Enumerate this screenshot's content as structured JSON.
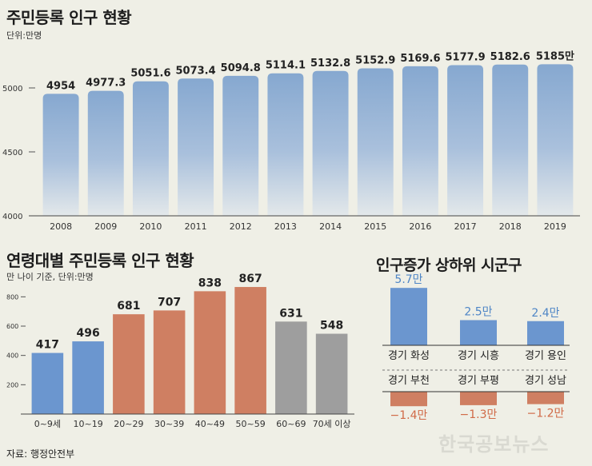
{
  "source": "자료: 행정안전부",
  "watermark": "한국공보뉴스",
  "chart_data": [
    {
      "type": "bar",
      "title": "주민등록 인구 현황",
      "subtitle": "단위:만명",
      "categories": [
        "2008",
        "2009",
        "2010",
        "2011",
        "2012",
        "2013",
        "2014",
        "2015",
        "2016",
        "2017",
        "2018",
        "2019"
      ],
      "values": [
        4954,
        4977.3,
        5051.6,
        5073.4,
        5094.8,
        5114.1,
        5132.8,
        5152.9,
        5169.6,
        5177.9,
        5182.6,
        5185
      ],
      "value_labels": [
        "4954",
        "4977.3",
        "5051.6",
        "5073.4",
        "5094.8",
        "5114.1",
        "5132.8",
        "5152.9",
        "5169.6",
        "5177.9",
        "5182.6",
        "5185만"
      ],
      "yticks": [
        4000,
        4500,
        5000
      ],
      "ytick_labels": [
        "4000",
        "4500",
        "5000"
      ],
      "ylim": [
        4000,
        5300
      ],
      "color": "#86a8d0"
    },
    {
      "type": "bar",
      "title": "연령대별 주민등록 인구 현황",
      "subtitle": "만 나이 기준, 단위:만명",
      "categories": [
        "0~9세",
        "10~19",
        "20~29",
        "30~39",
        "40~49",
        "50~59",
        "60~69",
        "70세 이상"
      ],
      "values": [
        417,
        496,
        681,
        707,
        838,
        867,
        631,
        548
      ],
      "value_labels": [
        "417",
        "496",
        "681",
        "707",
        "838",
        "867",
        "631",
        "548"
      ],
      "colors": [
        "#6b96cf",
        "#6b96cf",
        "#cf7f62",
        "#cf7f62",
        "#cf7f62",
        "#cf7f62",
        "#9e9e9e",
        "#9e9e9e"
      ],
      "yticks": [
        200,
        400,
        600,
        800
      ],
      "ytick_labels": [
        "200",
        "400",
        "600",
        "800"
      ],
      "ylim": [
        0,
        900
      ]
    },
    {
      "type": "bar",
      "title": "인구증가 상하위 시군구",
      "top": {
        "categories": [
          "경기 화성",
          "경기 시흥",
          "경기 용인"
        ],
        "values": [
          5.7,
          2.5,
          2.4
        ],
        "value_labels": [
          "5.7만",
          "2.5만",
          "2.4만"
        ],
        "color": "#6b96cf",
        "label_color": "#4f86c6"
      },
      "bottom": {
        "categories": [
          "경기 부천",
          "경기 부평",
          "경기 성남"
        ],
        "values": [
          -1.4,
          -1.3,
          -1.2
        ],
        "value_labels": [
          "−1.4만",
          "−1.3만",
          "−1.2만"
        ],
        "color": "#cf7f62",
        "label_color": "#d06a47"
      }
    }
  ]
}
